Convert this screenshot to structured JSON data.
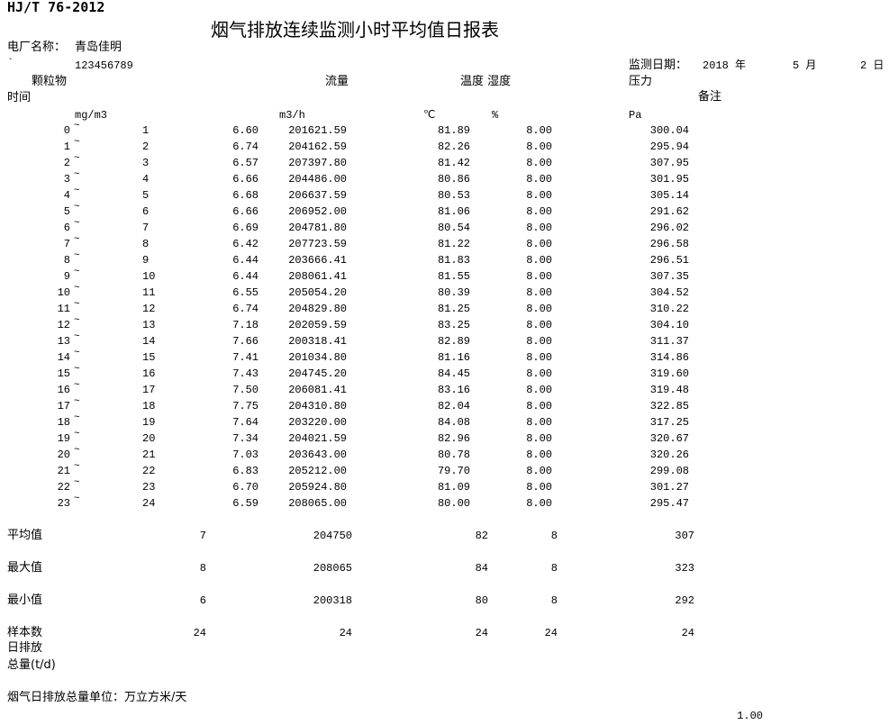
{
  "header": {
    "standard": "HJ/T 76-2012",
    "title": "烟气排放连续监测小时平均值日报表",
    "plant_label": "电厂名称：",
    "plant_name": "青岛佳明",
    "backtick": "`",
    "plant_code": "123456789",
    "date_label": "监测日期：",
    "year": "2018 年",
    "month": "5 月",
    "day": "2 日"
  },
  "columns": {
    "time": "时间",
    "pm": "颗粒物",
    "pm_unit": "mg/m3",
    "flow": "流量",
    "flow_unit": "m3/h",
    "temp_hum": "温度 湿度",
    "temp_unit": "℃",
    "hum_unit": "%",
    "pressure": "压力",
    "pressure_unit": "Pa",
    "remark": "备注"
  },
  "tilde": "~",
  "rows": [
    {
      "start": "0",
      "end": "1",
      "pm": "6.60",
      "flow": "201621.59",
      "temp": "81.89",
      "hum": "8.00",
      "pressure": "300.04"
    },
    {
      "start": "1",
      "end": "2",
      "pm": "6.74",
      "flow": "204162.59",
      "temp": "82.26",
      "hum": "8.00",
      "pressure": "295.94"
    },
    {
      "start": "2",
      "end": "3",
      "pm": "6.57",
      "flow": "207397.80",
      "temp": "81.42",
      "hum": "8.00",
      "pressure": "307.95"
    },
    {
      "start": "3",
      "end": "4",
      "pm": "6.66",
      "flow": "204486.00",
      "temp": "80.86",
      "hum": "8.00",
      "pressure": "301.95"
    },
    {
      "start": "4",
      "end": "5",
      "pm": "6.68",
      "flow": "206637.59",
      "temp": "80.53",
      "hum": "8.00",
      "pressure": "305.14"
    },
    {
      "start": "5",
      "end": "6",
      "pm": "6.66",
      "flow": "206952.00",
      "temp": "81.06",
      "hum": "8.00",
      "pressure": "291.62"
    },
    {
      "start": "6",
      "end": "7",
      "pm": "6.69",
      "flow": "204781.80",
      "temp": "80.54",
      "hum": "8.00",
      "pressure": "296.02"
    },
    {
      "start": "7",
      "end": "8",
      "pm": "6.42",
      "flow": "207723.59",
      "temp": "81.22",
      "hum": "8.00",
      "pressure": "296.58"
    },
    {
      "start": "8",
      "end": "9",
      "pm": "6.44",
      "flow": "203666.41",
      "temp": "81.83",
      "hum": "8.00",
      "pressure": "296.51"
    },
    {
      "start": "9",
      "end": "10",
      "pm": "6.44",
      "flow": "208061.41",
      "temp": "81.55",
      "hum": "8.00",
      "pressure": "307.35"
    },
    {
      "start": "10",
      "end": "11",
      "pm": "6.55",
      "flow": "205054.20",
      "temp": "80.39",
      "hum": "8.00",
      "pressure": "304.52"
    },
    {
      "start": "11",
      "end": "12",
      "pm": "6.74",
      "flow": "204829.80",
      "temp": "81.25",
      "hum": "8.00",
      "pressure": "310.22"
    },
    {
      "start": "12",
      "end": "13",
      "pm": "7.18",
      "flow": "202059.59",
      "temp": "83.25",
      "hum": "8.00",
      "pressure": "304.10"
    },
    {
      "start": "13",
      "end": "14",
      "pm": "7.66",
      "flow": "200318.41",
      "temp": "82.89",
      "hum": "8.00",
      "pressure": "311.37"
    },
    {
      "start": "14",
      "end": "15",
      "pm": "7.41",
      "flow": "201034.80",
      "temp": "81.16",
      "hum": "8.00",
      "pressure": "314.86"
    },
    {
      "start": "15",
      "end": "16",
      "pm": "7.43",
      "flow": "204745.20",
      "temp": "84.45",
      "hum": "8.00",
      "pressure": "319.60"
    },
    {
      "start": "16",
      "end": "17",
      "pm": "7.50",
      "flow": "206081.41",
      "temp": "83.16",
      "hum": "8.00",
      "pressure": "319.48"
    },
    {
      "start": "17",
      "end": "18",
      "pm": "7.75",
      "flow": "204310.80",
      "temp": "82.04",
      "hum": "8.00",
      "pressure": "322.85"
    },
    {
      "start": "18",
      "end": "19",
      "pm": "7.64",
      "flow": "203220.00",
      "temp": "84.08",
      "hum": "8.00",
      "pressure": "317.25"
    },
    {
      "start": "19",
      "end": "20",
      "pm": "7.34",
      "flow": "204021.59",
      "temp": "82.96",
      "hum": "8.00",
      "pressure": "320.67"
    },
    {
      "start": "20",
      "end": "21",
      "pm": "7.03",
      "flow": "203643.00",
      "temp": "80.78",
      "hum": "8.00",
      "pressure": "320.26"
    },
    {
      "start": "21",
      "end": "22",
      "pm": "6.83",
      "flow": "205212.00",
      "temp": "79.70",
      "hum": "8.00",
      "pressure": "299.08"
    },
    {
      "start": "22",
      "end": "23",
      "pm": "6.70",
      "flow": "205924.80",
      "temp": "81.09",
      "hum": "8.00",
      "pressure": "301.27"
    },
    {
      "start": "23",
      "end": "24",
      "pm": "6.59",
      "flow": "208065.00",
      "temp": "80.00",
      "hum": "8.00",
      "pressure": "295.47"
    }
  ],
  "summary": [
    {
      "label": "平均值",
      "pm": "7",
      "flow": "204750",
      "temp": "82",
      "hum": "8",
      "pressure": "307"
    },
    {
      "label": "最大值",
      "pm": "8",
      "flow": "208065",
      "temp": "84",
      "hum": "8",
      "pressure": "323"
    },
    {
      "label": "最小值",
      "pm": "6",
      "flow": "200318",
      "temp": "80",
      "hum": "8",
      "pressure": "292"
    },
    {
      "label": "样本数",
      "pm": "24",
      "flow": "24",
      "temp": "24",
      "hum": "24",
      "pressure": "24"
    }
  ],
  "footer": {
    "daily_emission_1": "日排放",
    "daily_emission_2": "总量(t/d)",
    "unit_label": "烟气日排放总量单位：万立方米/天",
    "unit_value": "1.00"
  }
}
